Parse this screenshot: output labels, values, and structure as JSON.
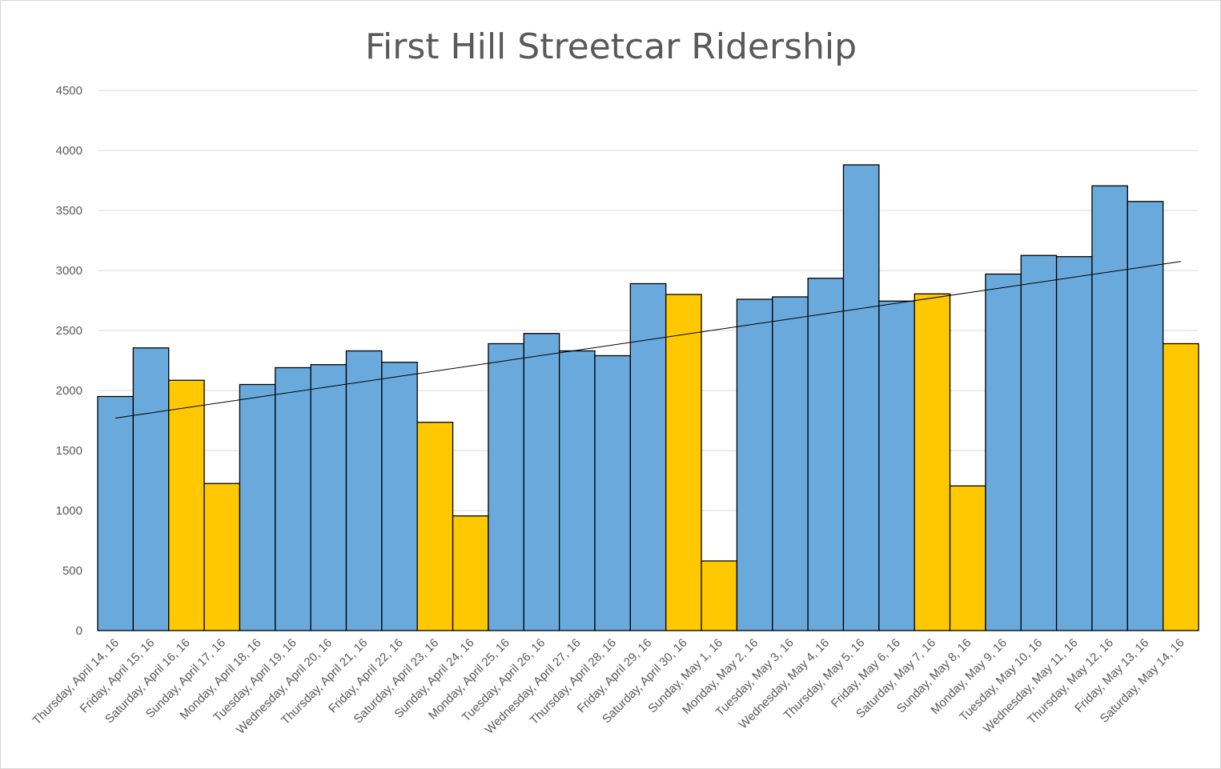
{
  "chart_data": {
    "type": "bar",
    "title": "First Hill Streetcar Ridership",
    "xlabel": "",
    "ylabel": "",
    "ylim": [
      0,
      4500
    ],
    "yticks": [
      0,
      500,
      1000,
      1500,
      2000,
      2500,
      3000,
      3500,
      4000,
      4500
    ],
    "grid": true,
    "legend": "none",
    "colors": {
      "weekday": "#6aa9db",
      "weekend": "#ffc800",
      "trendline": "#000000",
      "grid": "#d9d9d9"
    },
    "categories": [
      "Thursday, April 14, 16",
      "Friday, April 15, 16",
      "Saturday, April 16, 16",
      "Sunday, April 17, 16",
      "Monday, April 18, 16",
      "Tuesday, April 19, 16",
      "Wednesday, April 20, 16",
      "Thursday, April 21, 16",
      "Friday, April 22, 16",
      "Saturday, April 23, 16",
      "Sunday, April 24, 16",
      "Monday, April 25, 16",
      "Tuesday, April 26, 16",
      "Wednesday, April 27, 16",
      "Thursday, April 28, 16",
      "Friday, April 29, 16",
      "Saturday, April 30, 16",
      "Sunday, May 1, 16",
      "Monday, May 2, 16",
      "Tuesday, May 3, 16",
      "Wednesday, May 4, 16",
      "Thursday, May 5, 16",
      "Friday, May 6, 16",
      "Saturday, May 7, 16",
      "Sunday, May 8, 16",
      "Monday, May 9, 16",
      "Tuesday, May 10, 16",
      "Wednesday, May 11, 16",
      "Thursday, May 12, 16",
      "Friday, May 13, 16",
      "Saturday, May 14, 16"
    ],
    "values": [
      1950,
      2355,
      2085,
      1225,
      2050,
      2190,
      2215,
      2330,
      2235,
      1735,
      955,
      2390,
      2475,
      2330,
      2290,
      2890,
      2800,
      580,
      2760,
      2780,
      2935,
      3880,
      2745,
      2805,
      1205,
      2970,
      3125,
      3115,
      3705,
      3575,
      2390
    ],
    "weekend": [
      false,
      false,
      true,
      true,
      false,
      false,
      false,
      false,
      false,
      true,
      true,
      false,
      false,
      false,
      false,
      false,
      true,
      true,
      false,
      false,
      false,
      false,
      false,
      true,
      true,
      false,
      false,
      false,
      false,
      false,
      true
    ],
    "trendline": {
      "type": "linear",
      "start": 1770,
      "end": 3075
    }
  }
}
